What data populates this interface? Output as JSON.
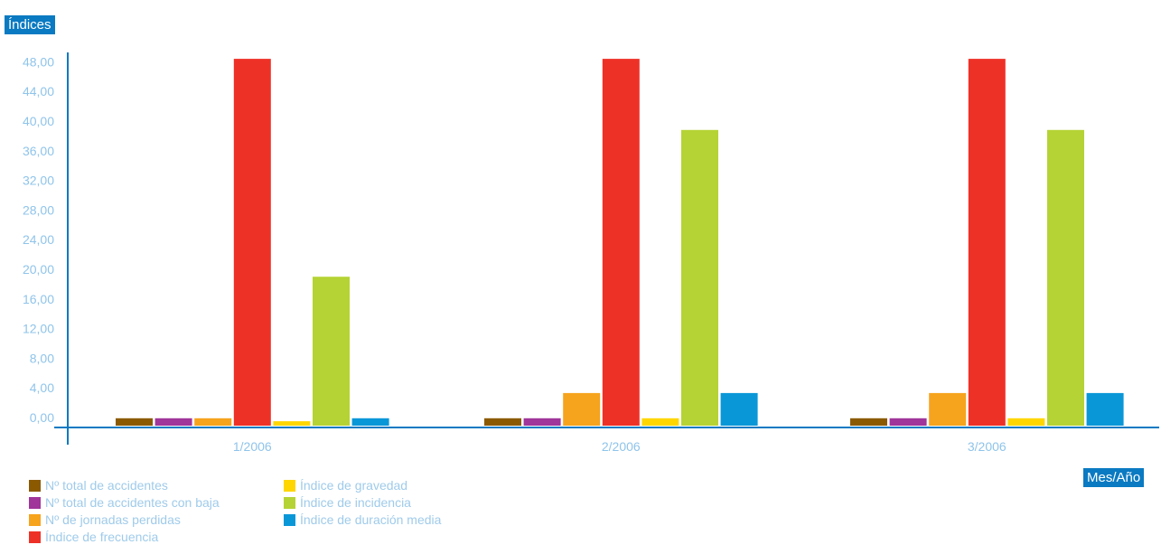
{
  "chart_data": {
    "type": "bar",
    "ylabel": "Índices",
    "xlabel": "Mes/Año",
    "ylim": [
      -0.6,
      49.5
    ],
    "yticks": [
      "0,00",
      "4,00",
      "8,00",
      "12,00",
      "16,00",
      "20,00",
      "24,00",
      "28,00",
      "32,00",
      "36,00",
      "40,00",
      "44,00",
      "48,00"
    ],
    "categories": [
      "1/2006",
      "2/2006",
      "3/2006"
    ],
    "series": [
      {
        "name": "Nº total de accidentes",
        "color": "#8b5a00",
        "values": [
          1,
          1,
          1
        ]
      },
      {
        "name": "Nº total de accidentes con baja",
        "color": "#a0359a",
        "values": [
          1,
          1,
          1
        ]
      },
      {
        "name": "Nº de jornadas  perdidas",
        "color": "#f6a31d",
        "values": [
          1,
          4.4,
          4.4
        ]
      },
      {
        "name": "Índice de frecuencia",
        "color": "#ee3127",
        "values": [
          49.5,
          49.5,
          49.5
        ]
      },
      {
        "name": "Índice de gravedad",
        "color": "#ffd600",
        "values": [
          0.6,
          1,
          1
        ]
      },
      {
        "name": "Índice de incidencia",
        "color": "#b5d334",
        "values": [
          20.1,
          39.9,
          39.9
        ]
      },
      {
        "name": "Índice de duración media",
        "color": "#0a97d8",
        "values": [
          1,
          4.4,
          4.4
        ]
      }
    ]
  }
}
